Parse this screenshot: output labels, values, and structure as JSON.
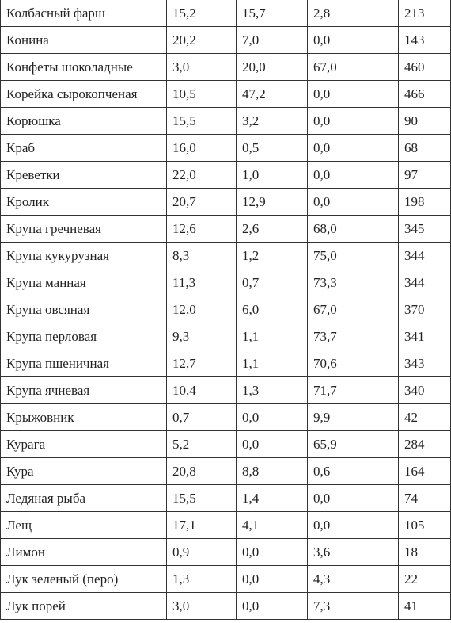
{
  "table": {
    "rows": [
      [
        "Колбасный фарш",
        "15,2",
        "15,7",
        "2,8",
        "213"
      ],
      [
        "Конина",
        "20,2",
        "7,0",
        "0,0",
        "143"
      ],
      [
        "Конфеты шоколадные",
        "3,0",
        "20,0",
        "67,0",
        "460"
      ],
      [
        "Корейка сырокопченая",
        "10,5",
        "47,2",
        "0,0",
        "466"
      ],
      [
        "Корюшка",
        "15,5",
        "3,2",
        "0,0",
        "90"
      ],
      [
        "Краб",
        "16,0",
        "0,5",
        "0,0",
        "68"
      ],
      [
        "Креветки",
        "22,0",
        "1,0",
        "0,0",
        "97"
      ],
      [
        "Кролик",
        "20,7",
        "12,9",
        "0,0",
        "198"
      ],
      [
        "Крупа гречневая",
        "12,6",
        "2,6",
        "68,0",
        "345"
      ],
      [
        "Крупа кукурузная",
        "8,3",
        "1,2",
        "75,0",
        "344"
      ],
      [
        "Крупа манная",
        "11,3",
        "0,7",
        "73,3",
        "344"
      ],
      [
        "Крупа овсяная",
        "12,0",
        "6,0",
        "67,0",
        "370"
      ],
      [
        "Крупа перловая",
        "9,3",
        "1,1",
        "73,7",
        "341"
      ],
      [
        "Крупа пшеничная",
        "12,7",
        "1,1",
        "70,6",
        "343"
      ],
      [
        "Крупа ячневая",
        "10,4",
        "1,3",
        "71,7",
        "340"
      ],
      [
        "Крыжовник",
        "0,7",
        "0,0",
        "9,9",
        "42"
      ],
      [
        "Курага",
        "5,2",
        "0,0",
        "65,9",
        "284"
      ],
      [
        "Кура",
        "20,8",
        "8,8",
        "0,6",
        "164"
      ],
      [
        "Ледяная рыба",
        "15,5",
        "1,4",
        "0,0",
        "74"
      ],
      [
        "Лещ",
        "17,1",
        "4,1",
        "0,0",
        "105"
      ],
      [
        "Лимон",
        "0,9",
        "0,0",
        "3,6",
        "18"
      ],
      [
        "Лук зеленый (перо)",
        "1,3",
        "0,0",
        "4,3",
        "22"
      ],
      [
        "Лук порей",
        "3,0",
        "0,0",
        "7,3",
        "41"
      ]
    ]
  }
}
